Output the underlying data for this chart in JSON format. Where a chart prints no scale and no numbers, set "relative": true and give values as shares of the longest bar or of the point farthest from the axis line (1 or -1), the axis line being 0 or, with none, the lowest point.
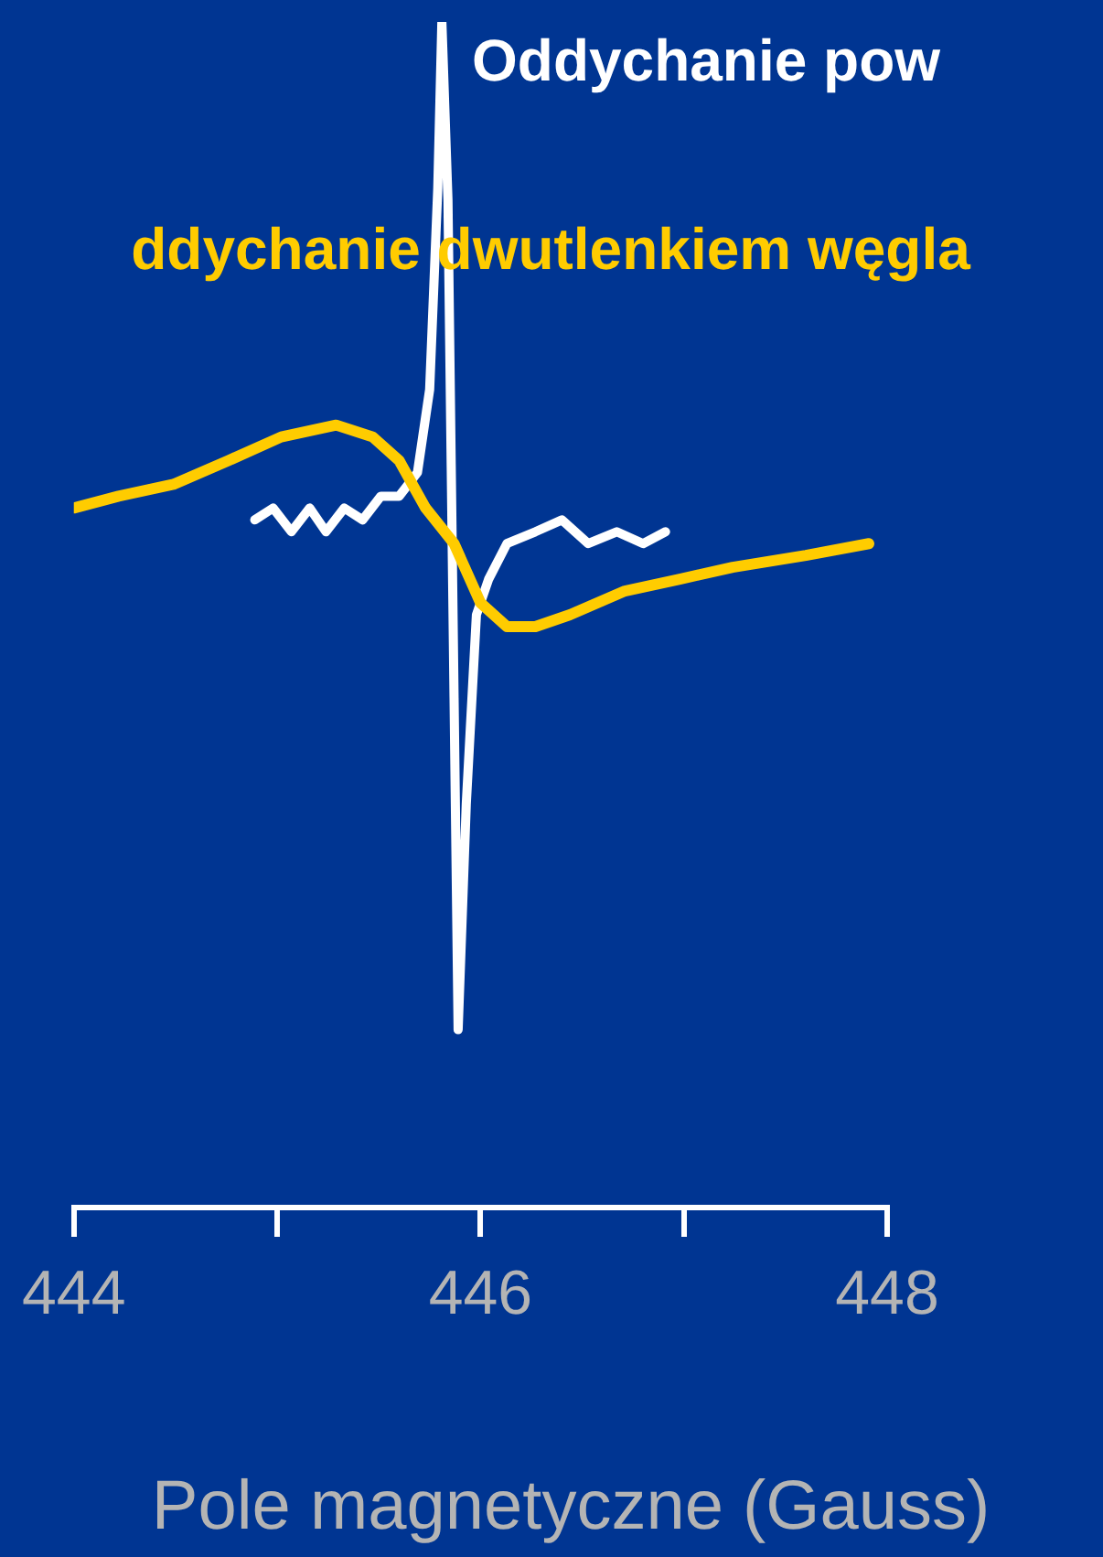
{
  "chart_data": {
    "type": "line",
    "relative": true,
    "xlabel": "Pole magnetyczne (Gauss)",
    "xlim": [
      444,
      448
    ],
    "xticks": [
      444,
      {
        "value": 445,
        "label": null
      },
      446,
      {
        "value": 447,
        "label": null
      },
      448
    ],
    "grid": false,
    "legend": false,
    "marker": "none",
    "line_style": "solid",
    "tick_labels": "x",
    "series": [
      {
        "name": "Oddychanie pow",
        "color": "#ffffff",
        "x": [
          444.89,
          444.98,
          445.07,
          445.16,
          445.24,
          445.33,
          445.42,
          445.51,
          445.6,
          445.69,
          445.75,
          445.79,
          445.81,
          445.84,
          445.87,
          445.89,
          445.93,
          445.98,
          446.04,
          446.13,
          446.27,
          446.4,
          446.53,
          446.67,
          446.8,
          446.91
        ],
        "values": [
          0.58,
          0.59,
          0.57,
          0.59,
          0.57,
          0.59,
          0.58,
          0.6,
          0.6,
          0.62,
          0.69,
          0.86,
          1,
          0.85,
          0.43,
          0.15,
          0.34,
          0.5,
          0.53,
          0.56,
          0.57,
          0.58,
          0.56,
          0.57,
          0.56,
          0.57
        ]
      },
      {
        "name": "ddychanie dwutlenkiem węgla",
        "color": "#ffcc00",
        "x": [
          444,
          444.22,
          444.49,
          444.76,
          445.02,
          445.29,
          445.47,
          445.6,
          445.73,
          445.87,
          446,
          446.13,
          446.27,
          446.44,
          446.71,
          446.98,
          447.24,
          447.6,
          447.91
        ],
        "values": [
          0.59,
          0.6,
          0.61,
          0.63,
          0.65,
          0.66,
          0.65,
          0.63,
          0.59,
          0.56,
          0.51,
          0.49,
          0.49,
          0.5,
          0.52,
          0.53,
          0.54,
          0.55,
          0.56
        ]
      }
    ]
  }
}
